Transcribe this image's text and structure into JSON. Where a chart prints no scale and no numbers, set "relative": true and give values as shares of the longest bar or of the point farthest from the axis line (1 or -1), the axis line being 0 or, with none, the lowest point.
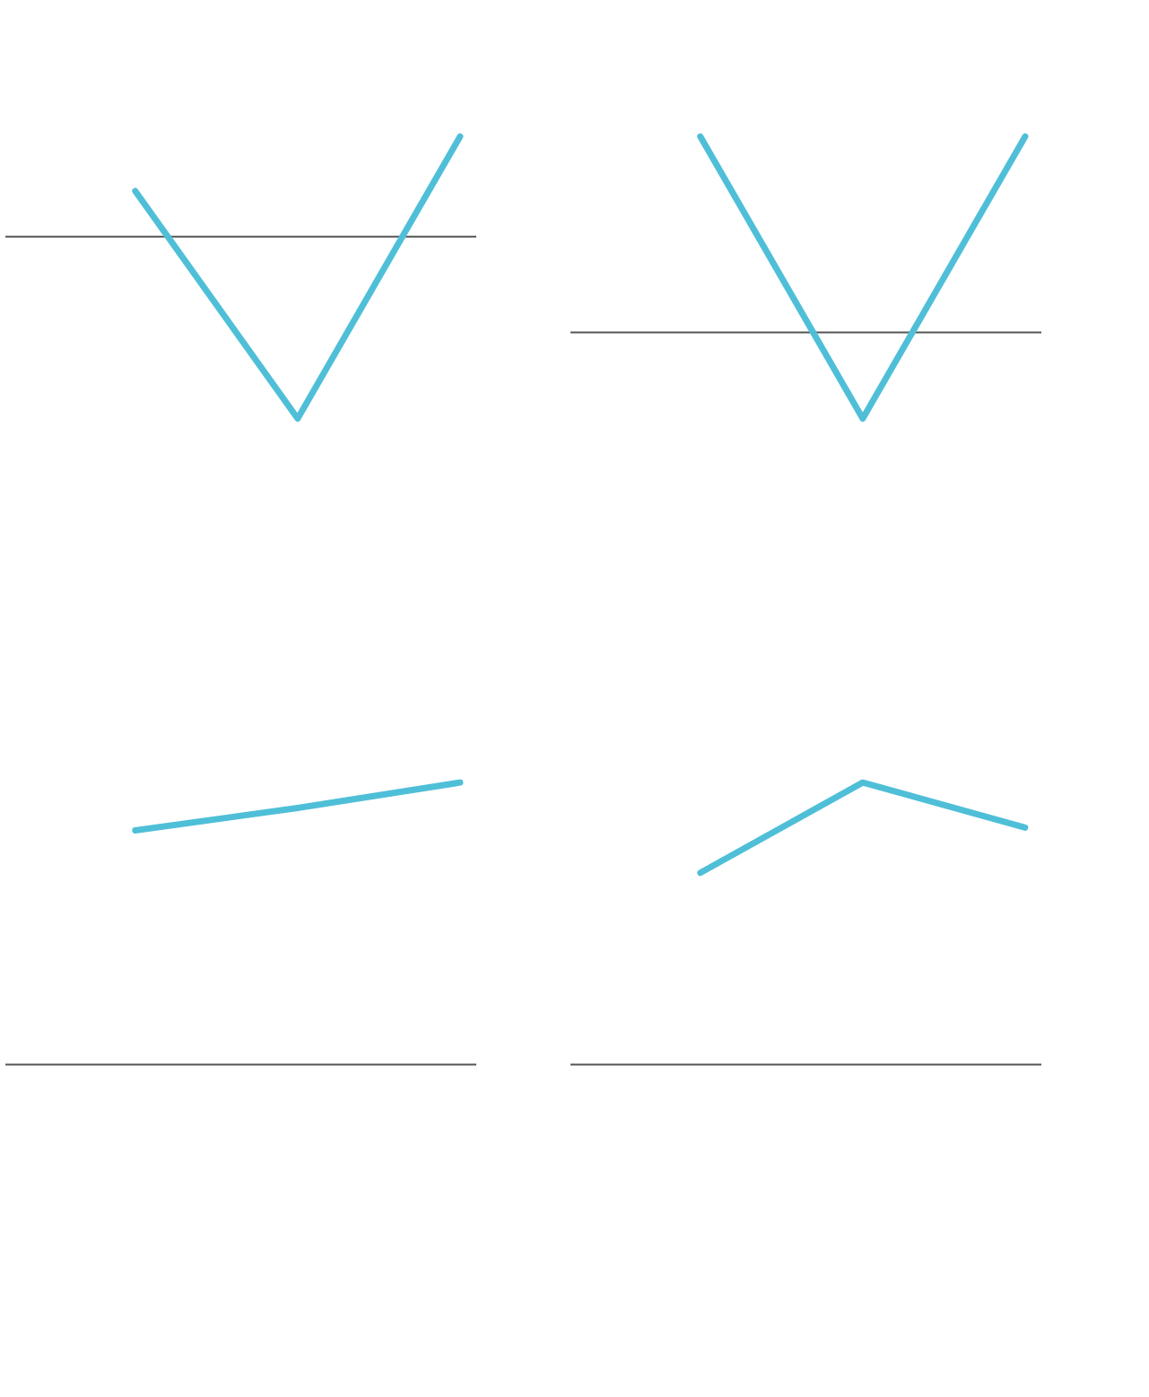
{
  "chart_data": [
    {
      "type": "line",
      "relative": true,
      "categories": [
        null,
        null,
        null
      ],
      "tick_labels": false,
      "series": [
        {
          "color": "#4fbfd8",
          "values": [
            0.25,
            -1,
            0.55
          ]
        }
      ]
    },
    {
      "type": "line",
      "relative": true,
      "categories": [
        null,
        null,
        null
      ],
      "tick_labels": false,
      "series": [
        {
          "color": "#4fbfd8",
          "values": [
            1,
            -0.44,
            1
          ]
        }
      ]
    },
    {
      "type": "line",
      "relative": true,
      "categories": [
        null,
        null,
        null
      ],
      "tick_labels": false,
      "series": [
        {
          "color": "#4fbfd8",
          "values": [
            0.83,
            0.91,
            1
          ]
        }
      ]
    },
    {
      "type": "line",
      "relative": true,
      "categories": [
        null,
        null,
        null
      ],
      "tick_labels": false,
      "series": [
        {
          "color": "#4fbfd8",
          "values": [
            0.68,
            1,
            0.84
          ]
        }
      ]
    }
  ]
}
